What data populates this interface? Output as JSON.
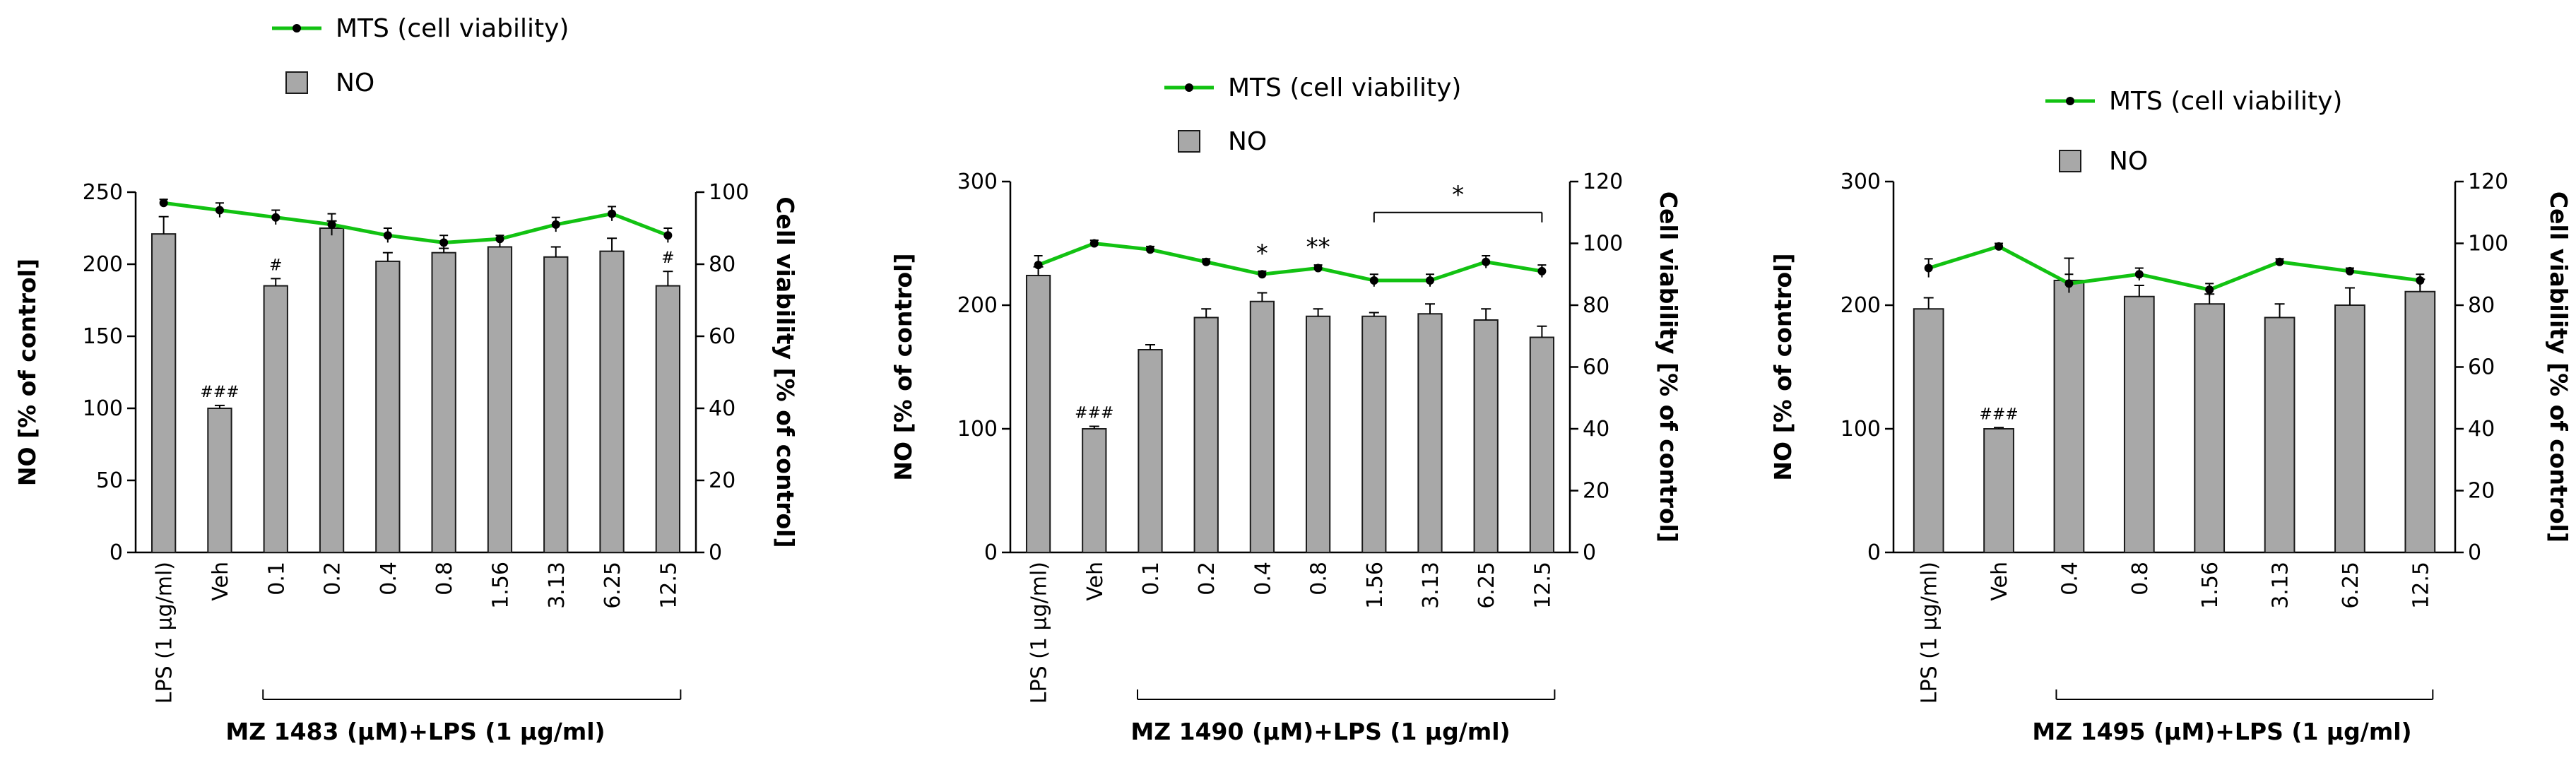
{
  "colors": {
    "bar_fill": "#a8a8a8",
    "bar_stroke": "#1a1a1a",
    "line": "#12c212",
    "axis": "#000000"
  },
  "chart_data": [
    {
      "type": "bar+line",
      "legend": {
        "line_label": "MTS (cell viability)",
        "bar_label": "NO",
        "placement": "top-left"
      },
      "categories": [
        "LPS (1 μg/ml)",
        "Veh",
        "0.1",
        "0.2",
        "0.4",
        "0.8",
        "1.56",
        "3.13",
        "6.25",
        "12.5"
      ],
      "bar_series": {
        "name": "NO",
        "values": [
          221,
          100,
          185,
          225,
          202,
          208,
          212,
          205,
          209,
          185
        ],
        "errors": [
          12,
          2,
          5,
          5,
          6,
          3,
          6,
          7,
          9,
          10
        ]
      },
      "line_series": {
        "name": "MTS (cell viability)",
        "values": [
          97,
          95,
          93,
          91,
          88,
          86,
          87,
          91,
          94,
          88
        ],
        "errors": [
          1,
          2,
          2,
          3,
          2,
          2,
          1,
          2,
          2,
          2
        ]
      },
      "ylabel_left": "NO [% of control]",
      "ylabel_right": "Cell viability [% of control]",
      "ylim_left": [
        0,
        250
      ],
      "yticks_left": [
        0,
        50,
        100,
        150,
        200,
        250
      ],
      "ylim_right": [
        0,
        100
      ],
      "yticks_right": [
        0,
        20,
        40,
        60,
        80,
        100
      ],
      "xlabel": "MZ 1483 (μM)+LPS (1 μg/ml)",
      "bracket_from": 2,
      "bracket_to": 9,
      "annotations": [
        {
          "category_index": 1,
          "text": "###"
        },
        {
          "category_index": 2,
          "text": "#"
        },
        {
          "category_index": 9,
          "text": "#"
        }
      ],
      "sig_bracket": null,
      "sig_marks": []
    },
    {
      "type": "bar+line",
      "legend": {
        "line_label": "MTS (cell viability)",
        "bar_label": "NO",
        "placement": "top-left"
      },
      "categories": [
        "LPS (1 μg/ml)",
        "Veh",
        "0.1",
        "0.2",
        "0.4",
        "0.8",
        "1.56",
        "3.13",
        "6.25",
        "12.5"
      ],
      "bar_series": {
        "name": "NO",
        "values": [
          224,
          100,
          164,
          190,
          203,
          191,
          191,
          193,
          188,
          174
        ],
        "errors": [
          7,
          2,
          4,
          7,
          7,
          6,
          3,
          8,
          9,
          9
        ]
      },
      "line_series": {
        "name": "MTS (cell viability)",
        "values": [
          93,
          100,
          98,
          94,
          90,
          92,
          88,
          88,
          94,
          91
        ],
        "errors": [
          3,
          1,
          1,
          1,
          1,
          1,
          2,
          2,
          2,
          2
        ]
      },
      "ylabel_left": "NO [% of control]",
      "ylabel_right": "Cell viability [% of control]",
      "ylim_left": [
        0,
        300
      ],
      "yticks_left": [
        0,
        100,
        200,
        300
      ],
      "ylim_right": [
        0,
        120
      ],
      "yticks_right": [
        0,
        20,
        40,
        60,
        80,
        100,
        120
      ],
      "xlabel": "MZ 1490 (μM)+LPS (1 μg/ml)",
      "bracket_from": 2,
      "bracket_to": 9,
      "annotations": [
        {
          "category_index": 1,
          "text": "###"
        }
      ],
      "sig_bracket": {
        "from": 6,
        "to": 9,
        "text": "*"
      },
      "sig_marks": [
        {
          "category_index": 4,
          "text": "*"
        },
        {
          "category_index": 5,
          "text": "**"
        }
      ]
    },
    {
      "type": "bar+line",
      "legend": {
        "line_label": "MTS (cell viability)",
        "bar_label": "NO",
        "placement": "top-left"
      },
      "categories": [
        "LPS (1 μg/ml)",
        "Veh",
        "0.4",
        "0.8",
        "1.56",
        "3.13",
        "6.25",
        "12.5"
      ],
      "bar_series": {
        "name": "NO",
        "values": [
          197,
          100,
          220,
          207,
          201,
          190,
          200,
          211
        ],
        "errors": [
          9,
          1,
          18,
          9,
          8,
          11,
          14,
          10
        ]
      },
      "line_series": {
        "name": "MTS (cell viability)",
        "values": [
          92,
          99,
          87,
          90,
          85,
          94,
          91,
          88
        ],
        "errors": [
          3,
          1,
          3,
          2,
          2,
          1,
          1,
          2
        ]
      },
      "ylabel_left": "NO [% of control]",
      "ylabel_right": "Cell viability [% of control]",
      "ylim_left": [
        0,
        300
      ],
      "yticks_left": [
        0,
        100,
        200,
        300
      ],
      "ylim_right": [
        0,
        120
      ],
      "yticks_right": [
        0,
        20,
        40,
        60,
        80,
        100,
        120
      ],
      "xlabel": "MZ 1495 (μM)+LPS (1 μg/ml)",
      "bracket_from": 2,
      "bracket_to": 7,
      "annotations": [
        {
          "category_index": 1,
          "text": "###"
        }
      ],
      "sig_bracket": null,
      "sig_marks": []
    }
  ]
}
